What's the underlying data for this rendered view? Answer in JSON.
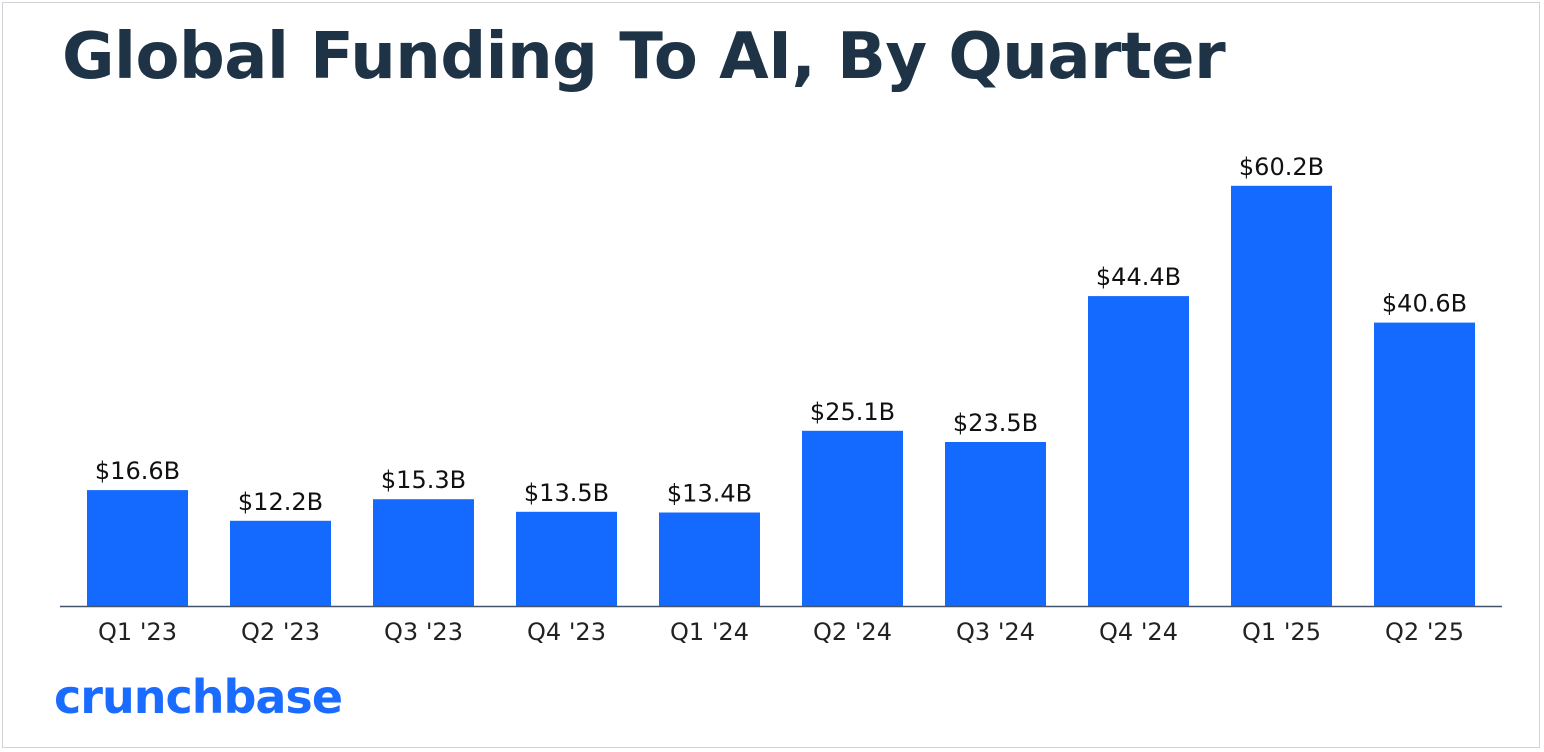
{
  "colors": {
    "bar": "#146aff",
    "axis": "#44546a",
    "title": "#1e3345",
    "label": "#111111",
    "brand": "#1a6bff"
  },
  "logo_text": "crunchbase",
  "chart_data": {
    "type": "bar",
    "title": "Global Funding To AI, By Quarter",
    "xlabel": "",
    "ylabel": "",
    "ylim": [
      0,
      70
    ],
    "grid": false,
    "legend": "none",
    "categories": [
      "Q1 '23",
      "Q2 '23",
      "Q3 '23",
      "Q4 '23",
      "Q1 '24",
      "Q2 '24",
      "Q3 '24",
      "Q4 '24",
      "Q1 '25",
      "Q2 '25"
    ],
    "values": [
      16.6,
      12.2,
      15.3,
      13.5,
      13.4,
      25.1,
      23.5,
      44.4,
      60.2,
      40.6
    ],
    "data_labels": [
      "$16.6B",
      "$12.2B",
      "$15.3B",
      "$13.5B",
      "$13.4B",
      "$25.1B",
      "$23.5B",
      "$44.4B",
      "$60.2B",
      "$40.6B"
    ]
  }
}
